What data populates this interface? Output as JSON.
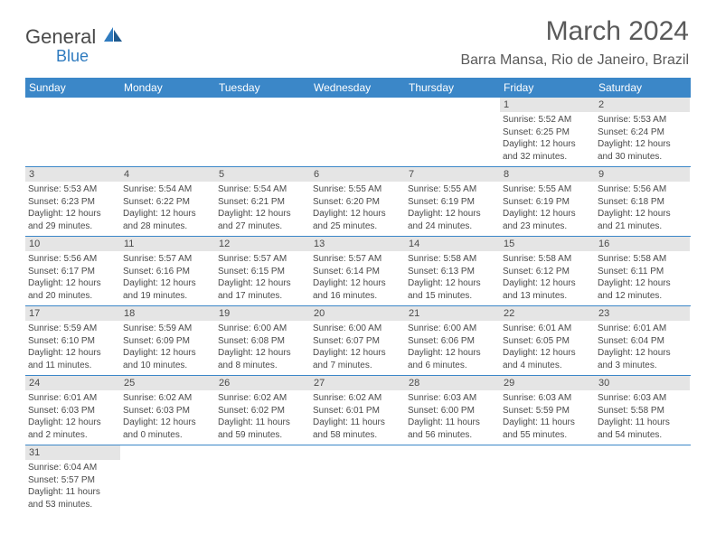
{
  "logo": {
    "text1": "General",
    "text2": "Blue",
    "icon_color": "#2f7bbf"
  },
  "title": "March 2024",
  "location": "Barra Mansa, Rio de Janeiro, Brazil",
  "day_headers": [
    "Sunday",
    "Monday",
    "Tuesday",
    "Wednesday",
    "Thursday",
    "Friday",
    "Saturday"
  ],
  "colors": {
    "header_bg": "#3b87c8",
    "header_text": "#ffffff",
    "daynum_bg": "#e5e5e5",
    "text": "#4a4a4a",
    "rule": "#3b87c8",
    "logo_blue": "#2f7bbf"
  },
  "weeks": [
    [
      null,
      null,
      null,
      null,
      null,
      {
        "n": "1",
        "sunrise": "5:52 AM",
        "sunset": "6:25 PM",
        "day_h": 12,
        "day_m": 32
      },
      {
        "n": "2",
        "sunrise": "5:53 AM",
        "sunset": "6:24 PM",
        "day_h": 12,
        "day_m": 30
      }
    ],
    [
      {
        "n": "3",
        "sunrise": "5:53 AM",
        "sunset": "6:23 PM",
        "day_h": 12,
        "day_m": 29
      },
      {
        "n": "4",
        "sunrise": "5:54 AM",
        "sunset": "6:22 PM",
        "day_h": 12,
        "day_m": 28
      },
      {
        "n": "5",
        "sunrise": "5:54 AM",
        "sunset": "6:21 PM",
        "day_h": 12,
        "day_m": 27
      },
      {
        "n": "6",
        "sunrise": "5:55 AM",
        "sunset": "6:20 PM",
        "day_h": 12,
        "day_m": 25
      },
      {
        "n": "7",
        "sunrise": "5:55 AM",
        "sunset": "6:19 PM",
        "day_h": 12,
        "day_m": 24
      },
      {
        "n": "8",
        "sunrise": "5:55 AM",
        "sunset": "6:19 PM",
        "day_h": 12,
        "day_m": 23
      },
      {
        "n": "9",
        "sunrise": "5:56 AM",
        "sunset": "6:18 PM",
        "day_h": 12,
        "day_m": 21
      }
    ],
    [
      {
        "n": "10",
        "sunrise": "5:56 AM",
        "sunset": "6:17 PM",
        "day_h": 12,
        "day_m": 20
      },
      {
        "n": "11",
        "sunrise": "5:57 AM",
        "sunset": "6:16 PM",
        "day_h": 12,
        "day_m": 19
      },
      {
        "n": "12",
        "sunrise": "5:57 AM",
        "sunset": "6:15 PM",
        "day_h": 12,
        "day_m": 17
      },
      {
        "n": "13",
        "sunrise": "5:57 AM",
        "sunset": "6:14 PM",
        "day_h": 12,
        "day_m": 16
      },
      {
        "n": "14",
        "sunrise": "5:58 AM",
        "sunset": "6:13 PM",
        "day_h": 12,
        "day_m": 15
      },
      {
        "n": "15",
        "sunrise": "5:58 AM",
        "sunset": "6:12 PM",
        "day_h": 12,
        "day_m": 13
      },
      {
        "n": "16",
        "sunrise": "5:58 AM",
        "sunset": "6:11 PM",
        "day_h": 12,
        "day_m": 12
      }
    ],
    [
      {
        "n": "17",
        "sunrise": "5:59 AM",
        "sunset": "6:10 PM",
        "day_h": 12,
        "day_m": 11
      },
      {
        "n": "18",
        "sunrise": "5:59 AM",
        "sunset": "6:09 PM",
        "day_h": 12,
        "day_m": 10
      },
      {
        "n": "19",
        "sunrise": "6:00 AM",
        "sunset": "6:08 PM",
        "day_h": 12,
        "day_m": 8
      },
      {
        "n": "20",
        "sunrise": "6:00 AM",
        "sunset": "6:07 PM",
        "day_h": 12,
        "day_m": 7
      },
      {
        "n": "21",
        "sunrise": "6:00 AM",
        "sunset": "6:06 PM",
        "day_h": 12,
        "day_m": 6
      },
      {
        "n": "22",
        "sunrise": "6:01 AM",
        "sunset": "6:05 PM",
        "day_h": 12,
        "day_m": 4
      },
      {
        "n": "23",
        "sunrise": "6:01 AM",
        "sunset": "6:04 PM",
        "day_h": 12,
        "day_m": 3
      }
    ],
    [
      {
        "n": "24",
        "sunrise": "6:01 AM",
        "sunset": "6:03 PM",
        "day_h": 12,
        "day_m": 2
      },
      {
        "n": "25",
        "sunrise": "6:02 AM",
        "sunset": "6:03 PM",
        "day_h": 12,
        "day_m": 0
      },
      {
        "n": "26",
        "sunrise": "6:02 AM",
        "sunset": "6:02 PM",
        "day_h": 11,
        "day_m": 59
      },
      {
        "n": "27",
        "sunrise": "6:02 AM",
        "sunset": "6:01 PM",
        "day_h": 11,
        "day_m": 58
      },
      {
        "n": "28",
        "sunrise": "6:03 AM",
        "sunset": "6:00 PM",
        "day_h": 11,
        "day_m": 56
      },
      {
        "n": "29",
        "sunrise": "6:03 AM",
        "sunset": "5:59 PM",
        "day_h": 11,
        "day_m": 55
      },
      {
        "n": "30",
        "sunrise": "6:03 AM",
        "sunset": "5:58 PM",
        "day_h": 11,
        "day_m": 54
      }
    ],
    [
      {
        "n": "31",
        "sunrise": "6:04 AM",
        "sunset": "5:57 PM",
        "day_h": 11,
        "day_m": 53
      },
      null,
      null,
      null,
      null,
      null,
      null
    ]
  ]
}
